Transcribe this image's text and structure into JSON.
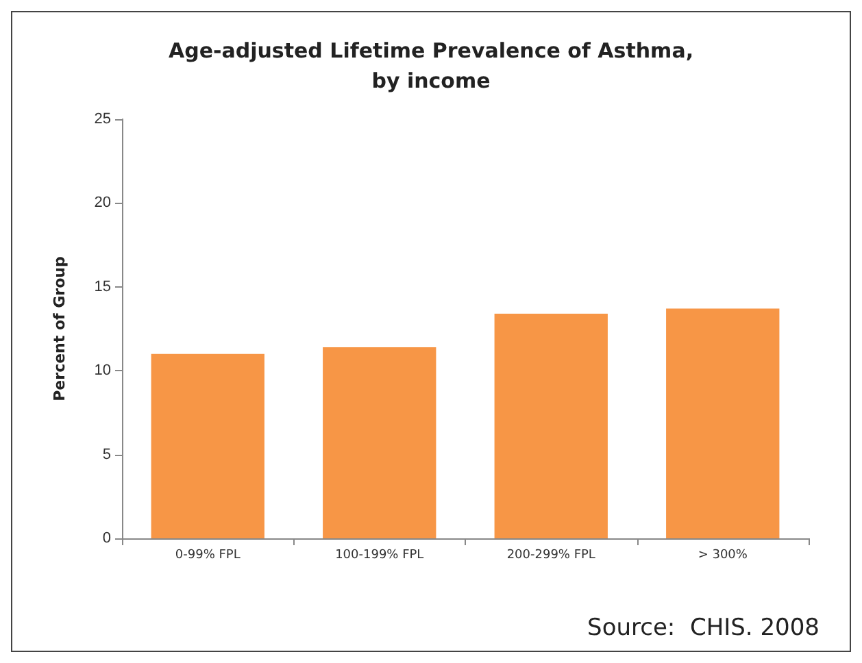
{
  "chart_data": {
    "type": "bar",
    "title": "Age-adjusted Lifetime Prevalence of Asthma,\nby income",
    "ylabel": "Percent of Group",
    "categories": [
      "0-99% FPL",
      "100-199% FPL",
      "200-299% FPL",
      "> 300%"
    ],
    "values": [
      11.0,
      11.4,
      13.4,
      13.7
    ],
    "color": "#f79646",
    "ylim": [
      0,
      25
    ],
    "yticks": [
      0,
      5,
      10,
      15,
      20,
      25
    ],
    "grid": false,
    "annotations": [
      "Source:  CHIS. 2008"
    ]
  }
}
